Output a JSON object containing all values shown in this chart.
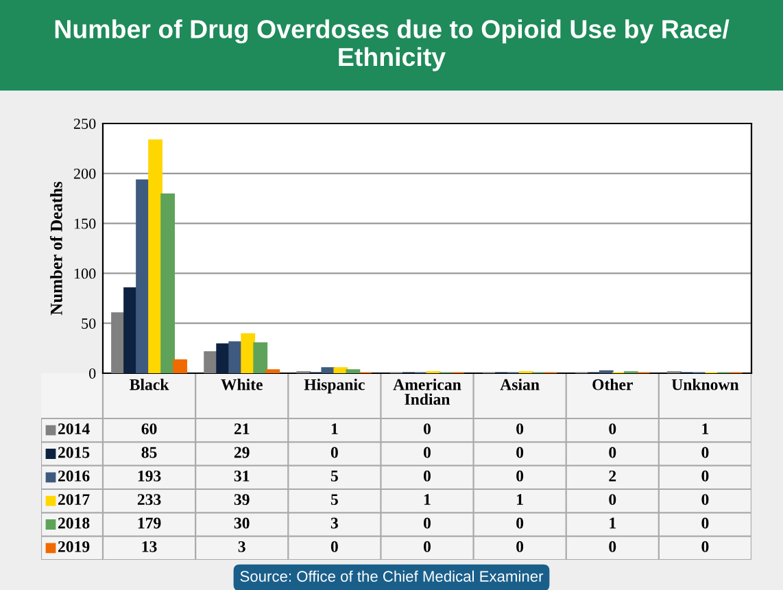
{
  "chart_data": {
    "type": "bar",
    "title": "Number of Drug Overdoses due to Opioid Use by Race/\nEthnicity",
    "ylabel": "Number of Deaths",
    "categories": [
      "Black",
      "White",
      "Hispanic",
      "American\nIndian",
      "Asian",
      "Other",
      "Unknown"
    ],
    "series": [
      {
        "name": "2014",
        "color": "#808080",
        "values": [
          60,
          21,
          1,
          0,
          0,
          0,
          1
        ]
      },
      {
        "name": "2015",
        "color": "#0d2240",
        "values": [
          85,
          29,
          0,
          0,
          0,
          0,
          0
        ]
      },
      {
        "name": "2016",
        "color": "#3f5a7f",
        "values": [
          193,
          31,
          5,
          0,
          0,
          2,
          0
        ]
      },
      {
        "name": "2017",
        "color": "#ffd700",
        "values": [
          233,
          39,
          5,
          1,
          1,
          0,
          0
        ]
      },
      {
        "name": "2018",
        "color": "#5fa35a",
        "values": [
          179,
          30,
          3,
          0,
          0,
          1,
          0
        ]
      },
      {
        "name": "2019",
        "color": "#f06a00",
        "values": [
          13,
          3,
          0,
          0,
          0,
          0,
          0
        ]
      }
    ],
    "ylim": [
      0,
      250
    ],
    "yticks": [
      0,
      50,
      100,
      150,
      200,
      250
    ],
    "grid": "y",
    "data_labels": true,
    "legend": "bottom",
    "annotations": [
      "Source: Office of the Chief Medical Examiner"
    ]
  }
}
